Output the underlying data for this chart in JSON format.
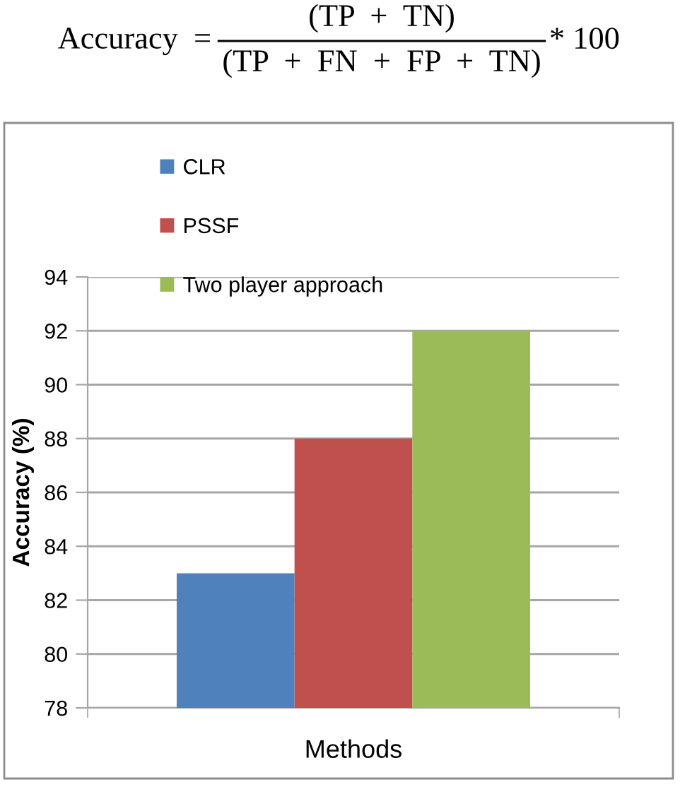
{
  "chart_data": {
    "type": "bar",
    "annotations": [
      "Accuracy  =",
      "(TP  +  TN)",
      "(TP  +  FN  +  FP  +  TN)",
      "* 100"
    ],
    "ylabel": "Accuracy (%)",
    "categories": [
      "Methods"
    ],
    "series": [
      {
        "name": "CLR",
        "color": "#4f81bd",
        "values": [
          83
        ]
      },
      {
        "name": "PSSF",
        "color": "#c0504d",
        "values": [
          88
        ]
      },
      {
        "name": "Two player approach",
        "color": "#9bbb59",
        "values": [
          92
        ]
      }
    ],
    "ylim": [
      78,
      94
    ],
    "yticks": [
      78,
      80,
      82,
      84,
      86,
      88,
      90,
      92,
      94
    ],
    "grid": "y",
    "legend": "top left"
  }
}
